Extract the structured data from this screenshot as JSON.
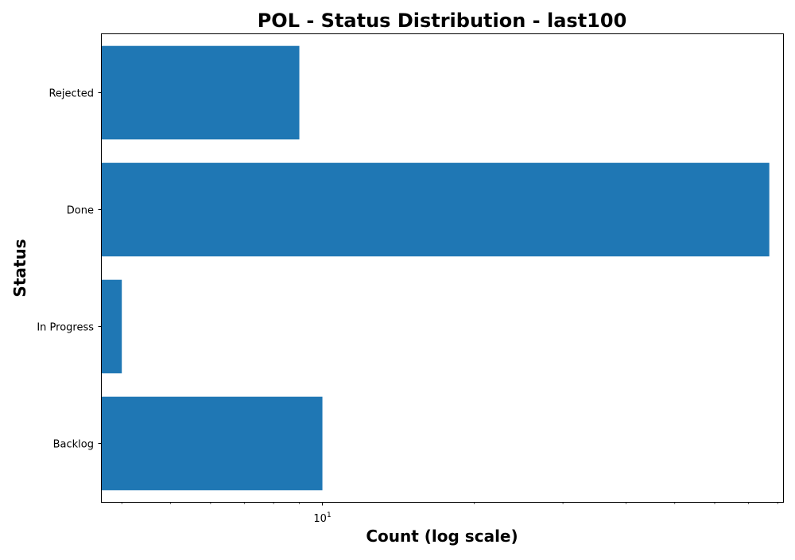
{
  "chart_data": {
    "type": "bar",
    "orientation": "horizontal",
    "title": "POL - Status Distribution - last100",
    "xlabel": "Count (log scale)",
    "ylabel": "Status",
    "categories": [
      "Backlog",
      "In Progress",
      "Done",
      "Rejected"
    ],
    "values": [
      10,
      4,
      77,
      9
    ],
    "xscale": "log",
    "xlim": [
      3.65,
      82
    ],
    "x_major_ticks": [
      10
    ],
    "x_major_tick_labels": [
      {
        "base": "10",
        "exponent": "1"
      }
    ],
    "x_minor_ticks": [
      4,
      5,
      6,
      7,
      8,
      9,
      20,
      30,
      40,
      50,
      60,
      70,
      80
    ],
    "grid": false,
    "legend": "none",
    "colors": {
      "bar": "#1f77b4",
      "axis": "#000000",
      "background": "#ffffff"
    }
  }
}
